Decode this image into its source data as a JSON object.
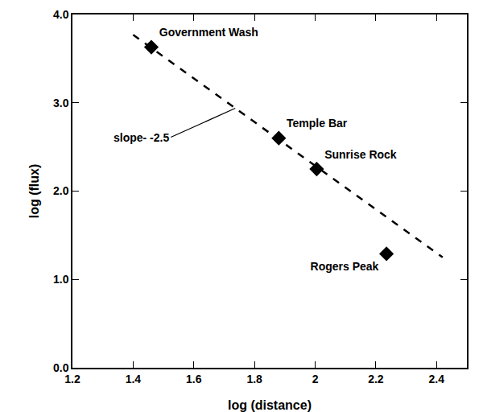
{
  "chart_data": {
    "type": "scatter",
    "x_label": "log (distance)",
    "y_label": "log (flux)",
    "points": {
      "x": [
        1.46,
        1.88,
        2.005,
        2.235
      ],
      "y": [
        3.63,
        2.6,
        2.25,
        1.29
      ],
      "labels": [
        "Government Wash",
        "Temple Bar",
        "Sunrise Rock",
        "Rogers Peak"
      ],
      "color": "#000000",
      "marker": "diamond"
    },
    "fit_line": {
      "x": [
        1.4,
        2.42
      ],
      "y": [
        3.77,
        1.25
      ],
      "color": "#000000",
      "line_style": "dash"
    },
    "annotations": [
      {
        "text": "slope- -2.5"
      }
    ],
    "xlim": [
      1.2,
      2.5
    ],
    "xticks": [
      1.2,
      1.4,
      1.6,
      1.8,
      2.0,
      2.2,
      2.4
    ],
    "ylim": [
      0,
      4
    ],
    "yticks": [
      {
        "value": 0,
        "label": "0.0"
      },
      {
        "value": 1,
        "label": "1.0"
      },
      {
        "value": 2,
        "label": "2.0"
      },
      {
        "value": 3,
        "label": "3.0"
      },
      {
        "value": 4,
        "label": "4.0"
      }
    ],
    "grid": false
  }
}
